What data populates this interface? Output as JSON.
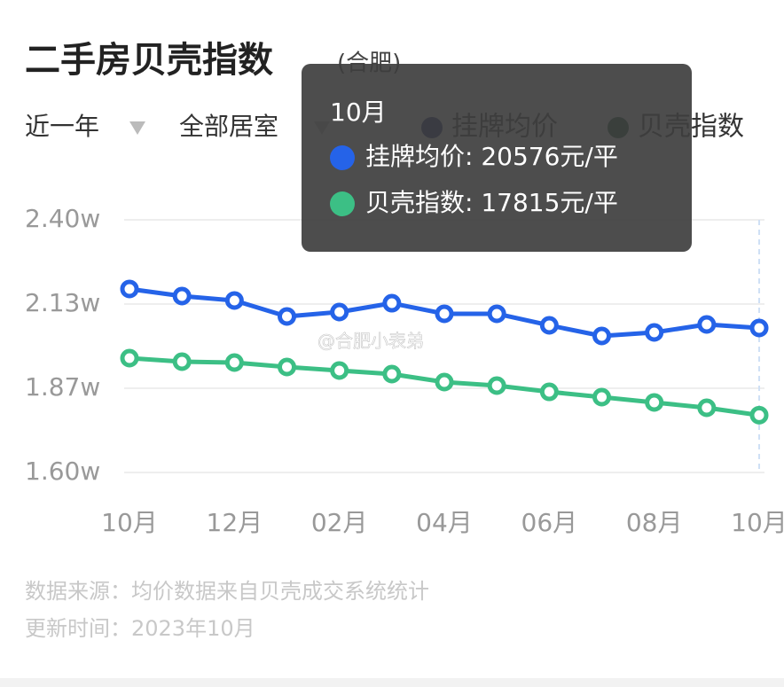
{
  "chart_data": {
    "type": "line",
    "title": "二手房贝壳指数",
    "subtitle": "(合肥)",
    "filters": [
      "近一年",
      "全部居室"
    ],
    "categories": [
      "10月",
      null,
      "12月",
      null,
      "02月",
      null,
      "04月",
      null,
      "06月",
      null,
      "08月",
      null,
      "10月"
    ],
    "series": [
      {
        "name": "挂牌均价",
        "color": "#2563e8",
        "legend_color": "#0f2470",
        "values": [
          21811,
          21586,
          21446,
          20940,
          21081,
          21361,
          21025,
          21025,
          20660,
          20323,
          20435,
          20688,
          20576
        ]
      },
      {
        "name": "贝壳指数",
        "color": "#3cbf85",
        "legend_color": "#0f4a2c",
        "values": [
          19621,
          19509,
          19481,
          19340,
          19228,
          19116,
          18863,
          18751,
          18554,
          18386,
          18218,
          18049,
          17815
        ]
      }
    ],
    "ylim": [
      16000,
      24000
    ],
    "yticks": [
      {
        "value": 16000,
        "label": "1.60w"
      },
      {
        "value": 18667,
        "label": "1.87w"
      },
      {
        "value": 21333,
        "label": "2.13w"
      },
      {
        "value": 24000,
        "label": "2.40w"
      }
    ],
    "grid": true,
    "tooltip": {
      "title": "10月",
      "items": [
        "挂牌均价: 20576元/平",
        "贝壳指数: 17815元/平"
      ]
    },
    "watermark": "@合肥小表弟",
    "footnotes": [
      "数据来源：均价数据来自贝壳成交系统统计",
      "更新时间：2023年10月"
    ]
  }
}
